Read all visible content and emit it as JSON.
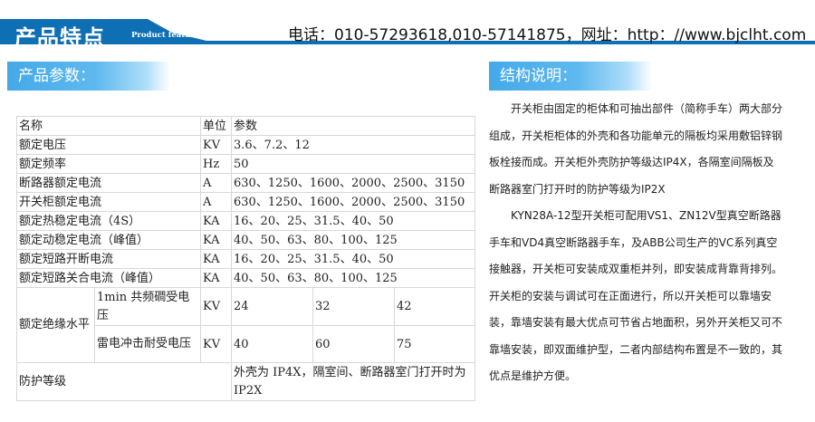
{
  "header": {
    "title": "产品特点",
    "subtitle": "Product features",
    "contact": "电话：010-57293618,010-57141875，网址：http：//www.bjclht.com",
    "brand_color": "#0e6fb4"
  },
  "left_section": {
    "title": "产品参数：",
    "table": {
      "header": [
        "名称",
        "单位",
        "参数"
      ],
      "rows": [
        [
          "额定电压",
          "KV",
          "3.6、7.2、12"
        ],
        [
          "额定频率",
          "Hz",
          "50"
        ],
        [
          "断路器额定电流",
          "A",
          "630、1250、1600、2000、2500、3150"
        ],
        [
          "开关柜额定电流",
          "A",
          "630、1250、1600、2000、2500、3150"
        ],
        [
          "额定热稳定电流（4S）",
          "KA",
          "16、20、25、31.5、40、50"
        ],
        [
          "额定动稳定电流（峰值）",
          "KA",
          "40、50、63、80、100、125"
        ],
        [
          "额定短路开断电流",
          "KA",
          "16、20、25、31.5、40、50"
        ],
        [
          "额定短路关合电流（峰值）",
          "KA",
          "40、50、63、80、100、125"
        ]
      ],
      "insulation": {
        "label": "额定绝缘水平",
        "rows": [
          {
            "name": "1min 共频磵受电压",
            "unit": "KV",
            "values": [
              "24",
              "32",
              "42"
            ]
          },
          {
            "name": "雷电冲击耐受电压",
            "unit": "KV",
            "values": [
              "40",
              "60",
              "75"
            ]
          }
        ]
      },
      "protection": {
        "name": "防护等级",
        "value": "外壳为 IP4X，隔室间、断路器室门打开时为IP2X"
      }
    }
  },
  "right_section": {
    "title": "结构说明：",
    "paragraphs": [
      "开关柜由固定的柜体和可抽出部件（简称手车）两大部分组成，开关柜柜体的外壳和各功能单元的隔板均采用敷铝锌钢板栓接而成。开关柜外壳防护等级达IP4X，各隔室间隔板及断路器室门打开时的防护等级为IP2X",
      "KYN28A-12型开关柜可配用VS1、ZN12V型真空断路器手车和VD4真空断路器手车，及ABB公司生产的VC系列真空接触器，开关柜可安装成双重柜并列，即安装成背靠背排列。开关柜的安装与调试可在正面进行，所以开关柜可以靠墙安装，靠墙安装有最大优点可节省占地面积，另外开关柜又可不靠墙安装，即双面维护型，二者内部结构布置是不一致的，其优点是维护方便。"
    ]
  }
}
